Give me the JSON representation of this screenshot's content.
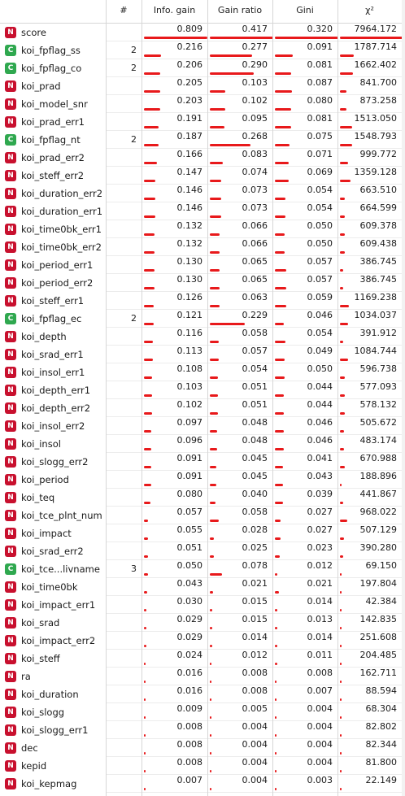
{
  "header": {
    "rank_label": "#",
    "info_gain_label": "Info. gain",
    "gain_ratio_label": "Gain ratio",
    "gini_label": "Gini",
    "chi2_label": "χ²",
    "sort_indicator": "▽"
  },
  "colors": {
    "numeric_badge": "#c8102e",
    "categorical_badge": "#2fa84f",
    "bar": "#e8191b"
  },
  "max": {
    "info_gain": 0.809,
    "gain_ratio": 0.417,
    "gini": 0.32,
    "chi2": 7964.172
  },
  "rows": [
    {
      "type": "N",
      "name": "score",
      "rank": "",
      "info_gain": "0.809",
      "gain_ratio": "0.417",
      "gini": "0.320",
      "chi2": "7964.172"
    },
    {
      "type": "C",
      "name": "koi_fpflag_ss",
      "rank": "2",
      "info_gain": "0.216",
      "gain_ratio": "0.277",
      "gini": "0.091",
      "chi2": "1787.714"
    },
    {
      "type": "C",
      "name": "koi_fpflag_co",
      "rank": "2",
      "info_gain": "0.206",
      "gain_ratio": "0.290",
      "gini": "0.081",
      "chi2": "1662.402"
    },
    {
      "type": "N",
      "name": "koi_prad",
      "rank": "",
      "info_gain": "0.205",
      "gain_ratio": "0.103",
      "gini": "0.087",
      "chi2": "841.700"
    },
    {
      "type": "N",
      "name": "koi_model_snr",
      "rank": "",
      "info_gain": "0.203",
      "gain_ratio": "0.102",
      "gini": "0.080",
      "chi2": "873.258"
    },
    {
      "type": "N",
      "name": "koi_prad_err1",
      "rank": "",
      "info_gain": "0.191",
      "gain_ratio": "0.095",
      "gini": "0.081",
      "chi2": "1513.050"
    },
    {
      "type": "C",
      "name": "koi_fpflag_nt",
      "rank": "2",
      "info_gain": "0.187",
      "gain_ratio": "0.268",
      "gini": "0.075",
      "chi2": "1548.793"
    },
    {
      "type": "N",
      "name": "koi_prad_err2",
      "rank": "",
      "info_gain": "0.166",
      "gain_ratio": "0.083",
      "gini": "0.071",
      "chi2": "999.772"
    },
    {
      "type": "N",
      "name": "koi_steff_err2",
      "rank": "",
      "info_gain": "0.147",
      "gain_ratio": "0.074",
      "gini": "0.069",
      "chi2": "1359.128"
    },
    {
      "type": "N",
      "name": "koi_duration_err2",
      "rank": "",
      "info_gain": "0.146",
      "gain_ratio": "0.073",
      "gini": "0.054",
      "chi2": "663.510"
    },
    {
      "type": "N",
      "name": "koi_duration_err1",
      "rank": "",
      "info_gain": "0.146",
      "gain_ratio": "0.073",
      "gini": "0.054",
      "chi2": "664.599"
    },
    {
      "type": "N",
      "name": "koi_time0bk_err1",
      "rank": "",
      "info_gain": "0.132",
      "gain_ratio": "0.066",
      "gini": "0.050",
      "chi2": "609.378"
    },
    {
      "type": "N",
      "name": "koi_time0bk_err2",
      "rank": "",
      "info_gain": "0.132",
      "gain_ratio": "0.066",
      "gini": "0.050",
      "chi2": "609.438"
    },
    {
      "type": "N",
      "name": "koi_period_err1",
      "rank": "",
      "info_gain": "0.130",
      "gain_ratio": "0.065",
      "gini": "0.057",
      "chi2": "386.745"
    },
    {
      "type": "N",
      "name": "koi_period_err2",
      "rank": "",
      "info_gain": "0.130",
      "gain_ratio": "0.065",
      "gini": "0.057",
      "chi2": "386.745"
    },
    {
      "type": "N",
      "name": "koi_steff_err1",
      "rank": "",
      "info_gain": "0.126",
      "gain_ratio": "0.063",
      "gini": "0.059",
      "chi2": "1169.238"
    },
    {
      "type": "C",
      "name": "koi_fpflag_ec",
      "rank": "2",
      "info_gain": "0.121",
      "gain_ratio": "0.229",
      "gini": "0.046",
      "chi2": "1034.037"
    },
    {
      "type": "N",
      "name": "koi_depth",
      "rank": "",
      "info_gain": "0.116",
      "gain_ratio": "0.058",
      "gini": "0.054",
      "chi2": "391.912"
    },
    {
      "type": "N",
      "name": "koi_srad_err1",
      "rank": "",
      "info_gain": "0.113",
      "gain_ratio": "0.057",
      "gini": "0.049",
      "chi2": "1084.744"
    },
    {
      "type": "N",
      "name": "koi_insol_err1",
      "rank": "",
      "info_gain": "0.108",
      "gain_ratio": "0.054",
      "gini": "0.050",
      "chi2": "596.738"
    },
    {
      "type": "N",
      "name": "koi_depth_err1",
      "rank": "",
      "info_gain": "0.103",
      "gain_ratio": "0.051",
      "gini": "0.044",
      "chi2": "577.093"
    },
    {
      "type": "N",
      "name": "koi_depth_err2",
      "rank": "",
      "info_gain": "0.102",
      "gain_ratio": "0.051",
      "gini": "0.044",
      "chi2": "578.132"
    },
    {
      "type": "N",
      "name": "koi_insol_err2",
      "rank": "",
      "info_gain": "0.097",
      "gain_ratio": "0.048",
      "gini": "0.046",
      "chi2": "505.672"
    },
    {
      "type": "N",
      "name": "koi_insol",
      "rank": "",
      "info_gain": "0.096",
      "gain_ratio": "0.048",
      "gini": "0.046",
      "chi2": "483.174"
    },
    {
      "type": "N",
      "name": "koi_slogg_err2",
      "rank": "",
      "info_gain": "0.091",
      "gain_ratio": "0.045",
      "gini": "0.041",
      "chi2": "670.988"
    },
    {
      "type": "N",
      "name": "koi_period",
      "rank": "",
      "info_gain": "0.091",
      "gain_ratio": "0.045",
      "gini": "0.043",
      "chi2": "188.896"
    },
    {
      "type": "N",
      "name": "koi_teq",
      "rank": "",
      "info_gain": "0.080",
      "gain_ratio": "0.040",
      "gini": "0.039",
      "chi2": "441.867"
    },
    {
      "type": "N",
      "name": "koi_tce_plnt_num",
      "rank": "",
      "info_gain": "0.057",
      "gain_ratio": "0.058",
      "gini": "0.027",
      "chi2": "968.022"
    },
    {
      "type": "N",
      "name": "koi_impact",
      "rank": "",
      "info_gain": "0.055",
      "gain_ratio": "0.028",
      "gini": "0.027",
      "chi2": "507.129"
    },
    {
      "type": "N",
      "name": "koi_srad_err2",
      "rank": "",
      "info_gain": "0.051",
      "gain_ratio": "0.025",
      "gini": "0.023",
      "chi2": "390.280"
    },
    {
      "type": "C",
      "name": "koi_tce...livname",
      "rank": "3",
      "info_gain": "0.050",
      "gain_ratio": "0.078",
      "gini": "0.012",
      "chi2": "69.150"
    },
    {
      "type": "N",
      "name": "koi_time0bk",
      "rank": "",
      "info_gain": "0.043",
      "gain_ratio": "0.021",
      "gini": "0.021",
      "chi2": "197.804"
    },
    {
      "type": "N",
      "name": "koi_impact_err1",
      "rank": "",
      "info_gain": "0.030",
      "gain_ratio": "0.015",
      "gini": "0.014",
      "chi2": "42.384"
    },
    {
      "type": "N",
      "name": "koi_srad",
      "rank": "",
      "info_gain": "0.029",
      "gain_ratio": "0.015",
      "gini": "0.013",
      "chi2": "142.835"
    },
    {
      "type": "N",
      "name": "koi_impact_err2",
      "rank": "",
      "info_gain": "0.029",
      "gain_ratio": "0.014",
      "gini": "0.014",
      "chi2": "251.608"
    },
    {
      "type": "N",
      "name": "koi_steff",
      "rank": "",
      "info_gain": "0.024",
      "gain_ratio": "0.012",
      "gini": "0.011",
      "chi2": "204.485"
    },
    {
      "type": "N",
      "name": "ra",
      "rank": "",
      "info_gain": "0.016",
      "gain_ratio": "0.008",
      "gini": "0.008",
      "chi2": "162.711"
    },
    {
      "type": "N",
      "name": "koi_duration",
      "rank": "",
      "info_gain": "0.016",
      "gain_ratio": "0.008",
      "gini": "0.007",
      "chi2": "88.594"
    },
    {
      "type": "N",
      "name": "koi_slogg",
      "rank": "",
      "info_gain": "0.009",
      "gain_ratio": "0.005",
      "gini": "0.004",
      "chi2": "68.304"
    },
    {
      "type": "N",
      "name": "koi_slogg_err1",
      "rank": "",
      "info_gain": "0.008",
      "gain_ratio": "0.004",
      "gini": "0.004",
      "chi2": "82.802"
    },
    {
      "type": "N",
      "name": "dec",
      "rank": "",
      "info_gain": "0.008",
      "gain_ratio": "0.004",
      "gini": "0.004",
      "chi2": "82.344"
    },
    {
      "type": "N",
      "name": "kepid",
      "rank": "",
      "info_gain": "0.008",
      "gain_ratio": "0.004",
      "gini": "0.004",
      "chi2": "81.800"
    },
    {
      "type": "N",
      "name": "koi_kepmag",
      "rank": "",
      "info_gain": "0.007",
      "gain_ratio": "0.004",
      "gini": "0.003",
      "chi2": "22.149"
    }
  ]
}
